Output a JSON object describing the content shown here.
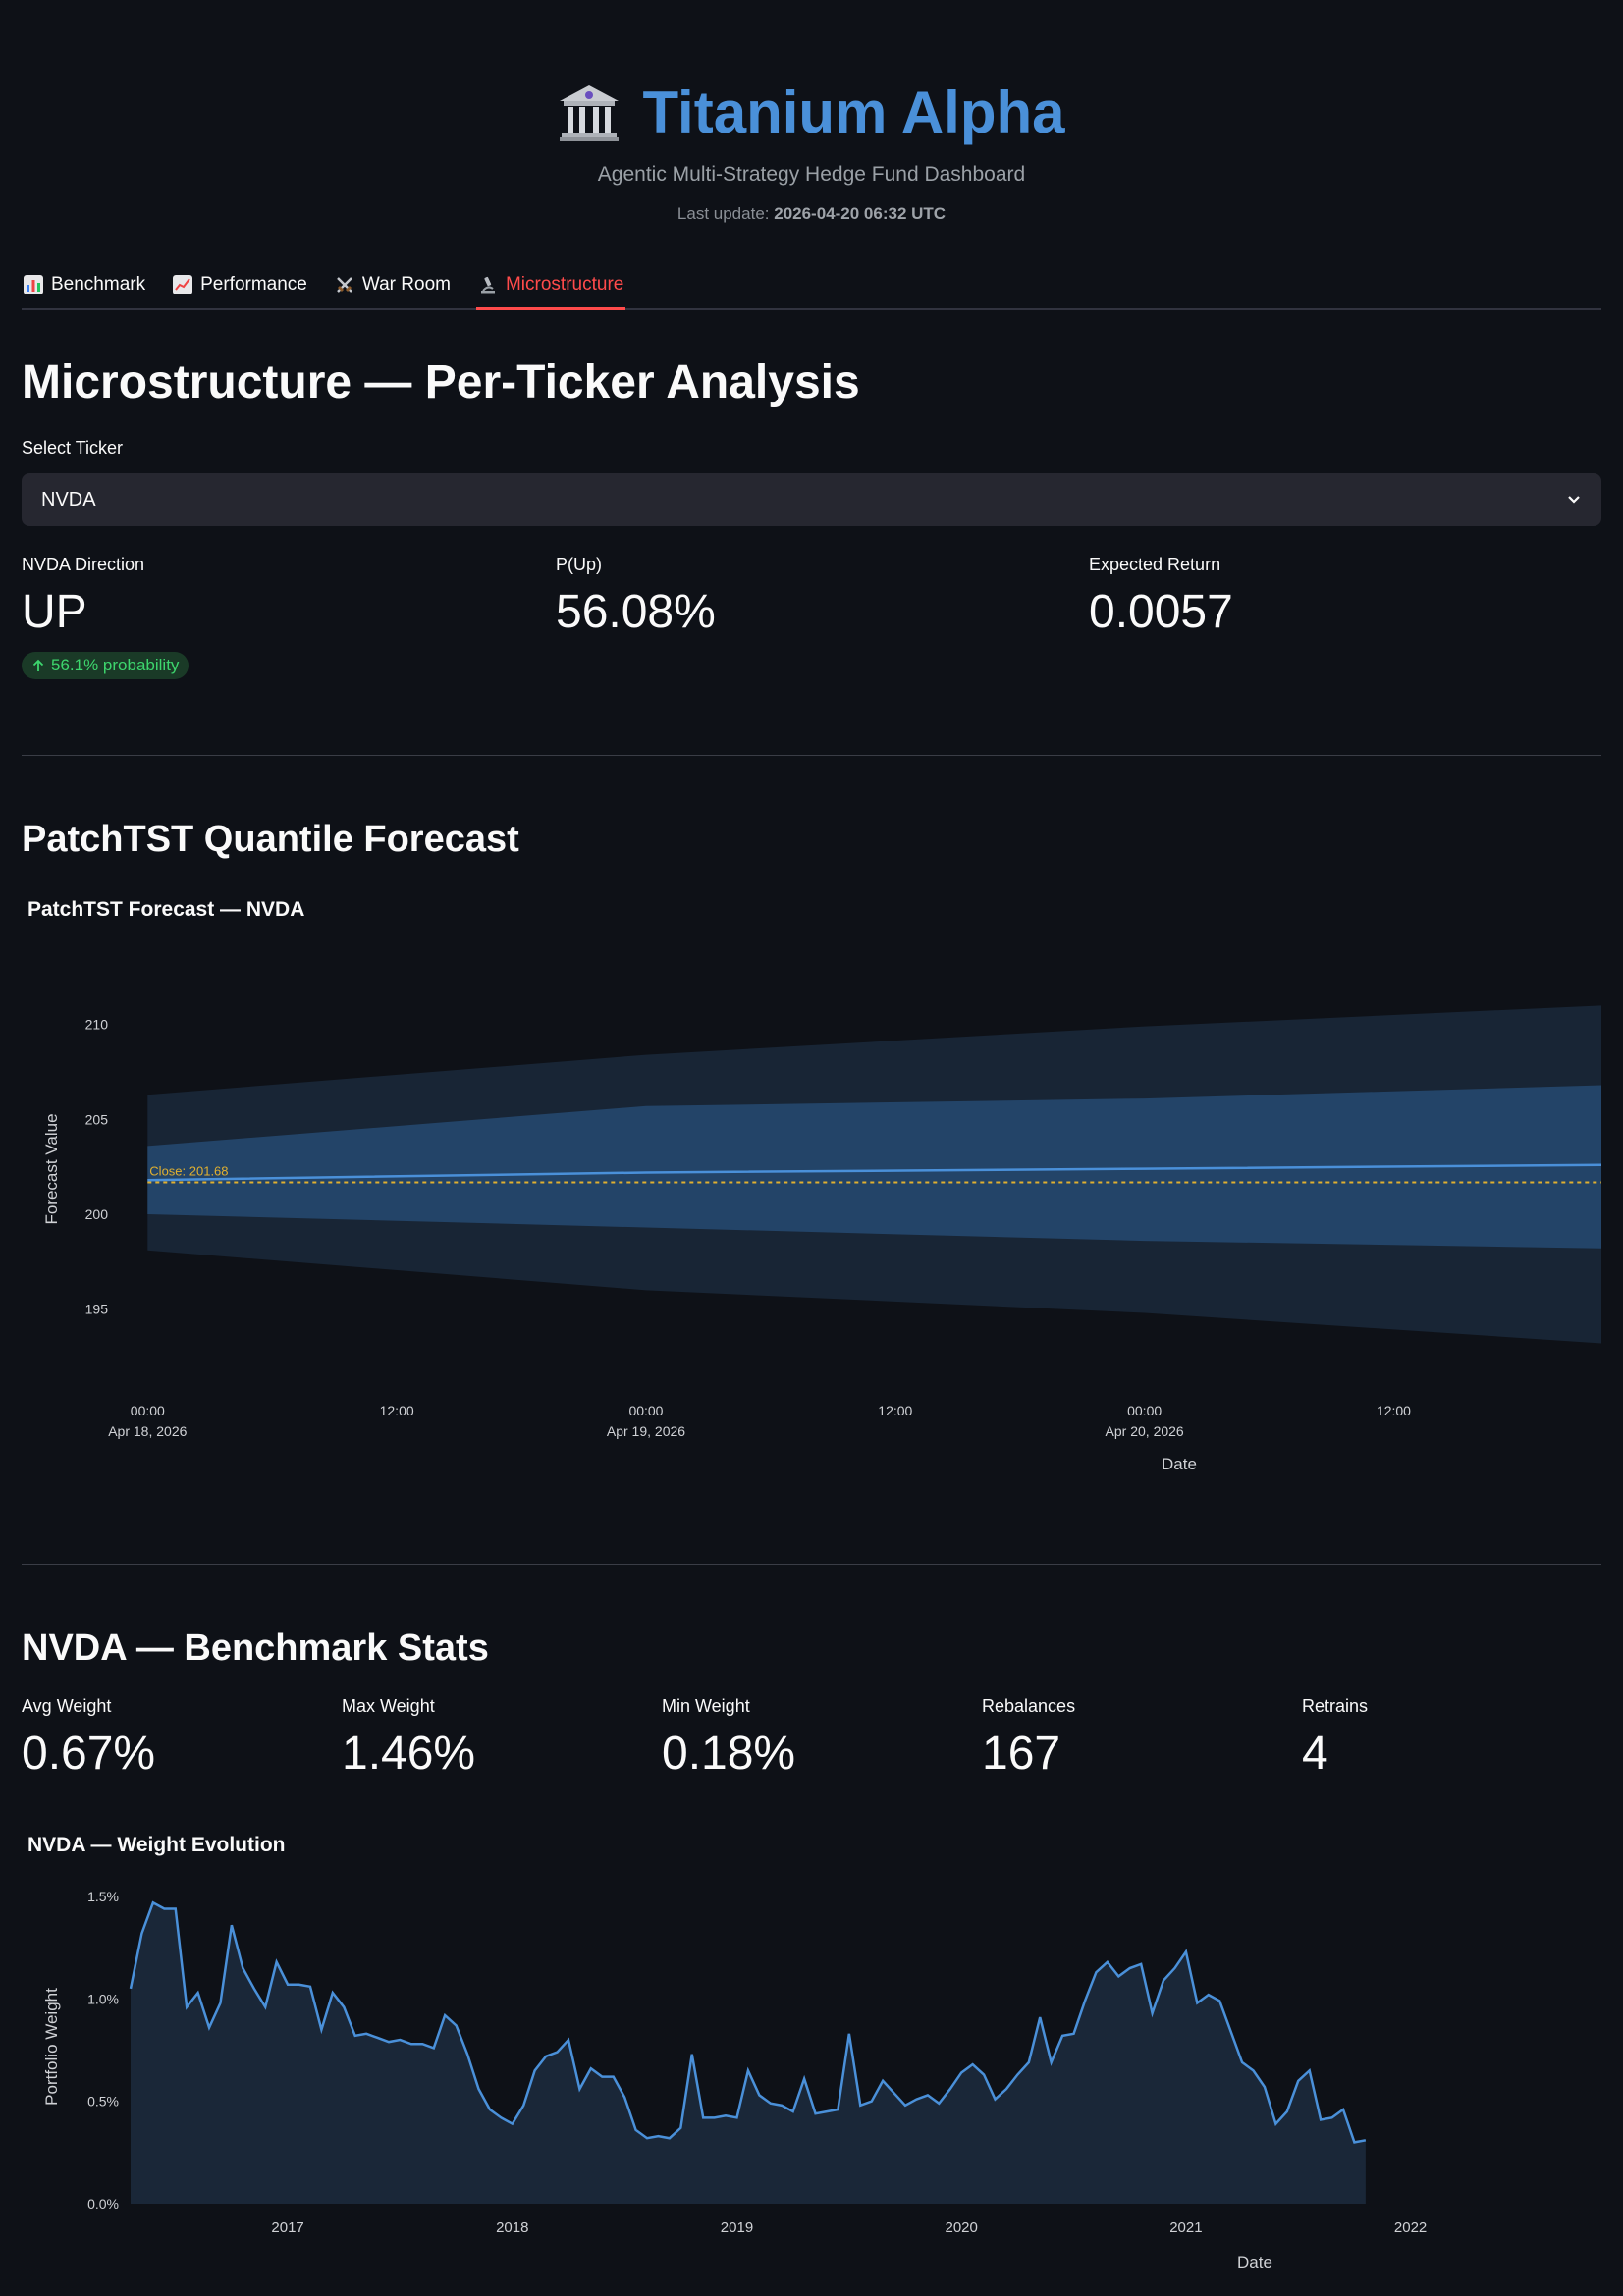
{
  "app": {
    "title": "Titanium Alpha",
    "subtitle": "Agentic Multi-Strategy Hedge Fund Dashboard",
    "last_update_label": "Last update:",
    "last_update_value": "2026-04-20 06:32 UTC"
  },
  "tabs": [
    {
      "label": "Benchmark",
      "icon": "bar-chart-icon"
    },
    {
      "label": "Performance",
      "icon": "line-chart-icon"
    },
    {
      "label": "War Room",
      "icon": "crossed-swords-icon"
    },
    {
      "label": "Microstructure",
      "icon": "microscope-icon",
      "active": true
    }
  ],
  "page": {
    "title": "Microstructure — Per-Ticker Analysis",
    "select_label": "Select Ticker",
    "selected_ticker": "NVDA"
  },
  "metrics_top": [
    {
      "label": "NVDA Direction",
      "value": "UP",
      "delta": "56.1% probability"
    },
    {
      "label": "P(Up)",
      "value": "56.08%"
    },
    {
      "label": "Expected Return",
      "value": "0.0057"
    }
  ],
  "forecast_section": {
    "heading": "PatchTST Quantile Forecast",
    "chart_title": "PatchTST Forecast — NVDA"
  },
  "stats_section": {
    "heading": "NVDA — Benchmark Stats",
    "metrics": [
      {
        "label": "Avg Weight",
        "value": "0.67%"
      },
      {
        "label": "Max Weight",
        "value": "1.46%"
      },
      {
        "label": "Min Weight",
        "value": "0.18%"
      },
      {
        "label": "Rebalances",
        "value": "167"
      },
      {
        "label": "Retrains",
        "value": "4"
      }
    ],
    "chart_title": "NVDA — Weight Evolution"
  },
  "colors": {
    "accent": "#4a90d9",
    "active_tab": "#ff4b4b",
    "close_line": "#e0b030",
    "band_outer": "#182535",
    "band_inner": "#234468"
  },
  "chart_data": [
    {
      "type": "area",
      "title": "PatchTST Forecast — NVDA",
      "xlabel": "Date",
      "ylabel": "Forecast Value",
      "ylim": [
        192.5,
        212
      ],
      "x_range_hours": [
        -2,
        70
      ],
      "xticks": [
        {
          "h": 0,
          "l1": "00:00",
          "l2": "Apr 18, 2026"
        },
        {
          "h": 12,
          "l1": "12:00",
          "l2": ""
        },
        {
          "h": 24,
          "l1": "00:00",
          "l2": "Apr 19, 2026"
        },
        {
          "h": 36,
          "l1": "12:00",
          "l2": ""
        },
        {
          "h": 48,
          "l1": "00:00",
          "l2": "Apr 20, 2026"
        },
        {
          "h": 60,
          "l1": "12:00",
          "l2": ""
        }
      ],
      "yticks": [
        195,
        200,
        205,
        210
      ],
      "hours": [
        0,
        24,
        48,
        70
      ],
      "series": [
        {
          "name": "q05",
          "values": [
            198.1,
            196.0,
            194.8,
            193.2
          ]
        },
        {
          "name": "q25",
          "values": [
            200.0,
            199.3,
            198.6,
            198.2
          ]
        },
        {
          "name": "median",
          "values": [
            201.8,
            202.2,
            202.4,
            202.6
          ]
        },
        {
          "name": "q75",
          "values": [
            203.6,
            205.7,
            206.1,
            206.8
          ]
        },
        {
          "name": "q95",
          "values": [
            206.3,
            208.4,
            209.9,
            211.0
          ]
        }
      ],
      "close": 201.68,
      "close_label": "Close: 201.68"
    },
    {
      "type": "area",
      "title": "NVDA — Weight Evolution",
      "xlabel": "Date",
      "ylabel": "Portfolio Weight",
      "ylim": [
        0,
        1.5
      ],
      "yticks": [
        0,
        0.5,
        1.0,
        1.5
      ],
      "ytick_labels": [
        "0.0%",
        "0.5%",
        "1.0%",
        "1.5%"
      ],
      "x_range": [
        2016.3,
        2022.85
      ],
      "xticks": [
        2017,
        2018,
        2019,
        2020,
        2021,
        2022
      ],
      "x_start": 2016.3,
      "x_step": 0.05,
      "values": [
        1.05,
        1.32,
        1.47,
        1.44,
        1.44,
        0.96,
        1.03,
        0.86,
        0.98,
        1.36,
        1.15,
        1.05,
        0.96,
        1.18,
        1.07,
        1.07,
        1.06,
        0.85,
        1.03,
        0.96,
        0.82,
        0.83,
        0.81,
        0.79,
        0.8,
        0.78,
        0.78,
        0.76,
        0.92,
        0.87,
        0.73,
        0.56,
        0.46,
        0.42,
        0.39,
        0.48,
        0.65,
        0.72,
        0.74,
        0.8,
        0.56,
        0.66,
        0.62,
        0.62,
        0.52,
        0.36,
        0.32,
        0.33,
        0.32,
        0.37,
        0.73,
        0.42,
        0.42,
        0.43,
        0.42,
        0.65,
        0.53,
        0.49,
        0.48,
        0.45,
        0.61,
        0.44,
        0.45,
        0.46,
        0.83,
        0.48,
        0.5,
        0.6,
        0.54,
        0.48,
        0.51,
        0.53,
        0.49,
        0.56,
        0.64,
        0.68,
        0.63,
        0.51,
        0.56,
        0.63,
        0.69,
        0.91,
        0.69,
        0.82,
        0.83,
        0.99,
        1.13,
        1.18,
        1.11,
        1.15,
        1.17,
        0.93,
        1.09,
        1.15,
        1.23,
        0.98,
        1.02,
        0.99,
        0.84,
        0.69,
        0.65,
        0.57,
        0.39,
        0.45,
        0.6,
        0.65,
        0.41,
        0.42,
        0.46,
        0.3,
        0.31
      ]
    }
  ]
}
